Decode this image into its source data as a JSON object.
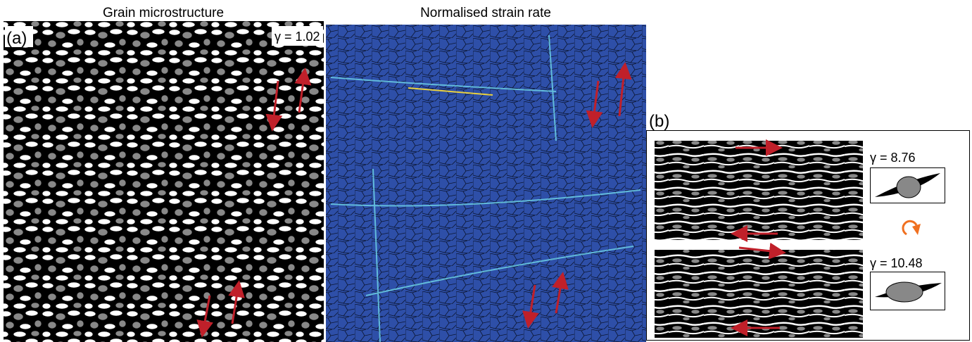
{
  "panel_a": {
    "label": "(a)",
    "left_title": "Grain microstructure",
    "right_title": "Normalised strain rate",
    "gamma": "γ = 1.02"
  },
  "panel_b": {
    "label": "(b)",
    "gamma_top": "γ = 8.76",
    "gamma_bottom": "γ = 10.48"
  }
}
